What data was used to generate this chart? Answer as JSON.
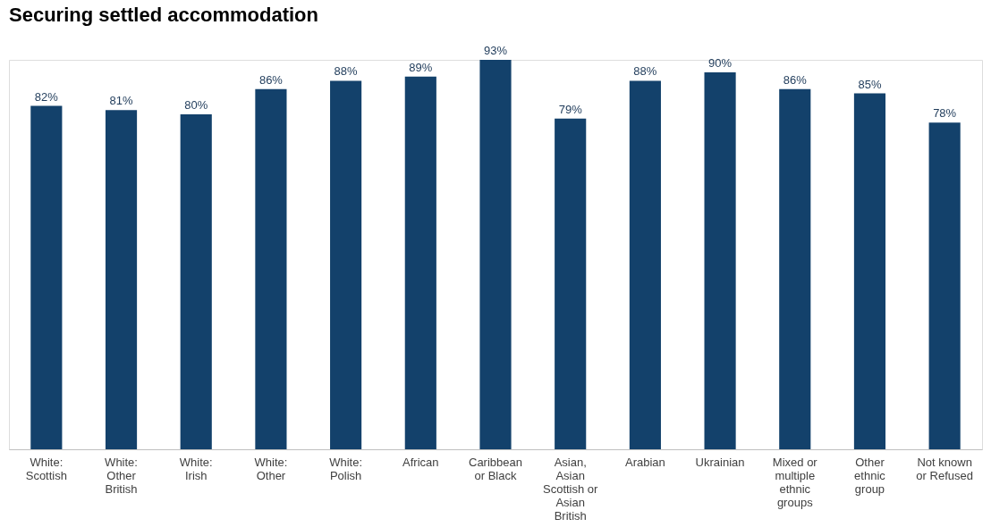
{
  "chart_data": {
    "type": "bar",
    "title": "Securing settled accommodation",
    "categories": [
      "White: Scottish",
      "White: Other British",
      "White: Irish",
      "White: Other",
      "White: Polish",
      "African",
      "Caribbean or Black",
      "Asian, Asian Scottish or Asian British",
      "Arabian",
      "Ukrainian",
      "Mixed or multiple ethnic groups",
      "Other ethnic group",
      "Not known or Refused"
    ],
    "values": [
      82,
      81,
      80,
      86,
      88,
      89,
      93,
      79,
      88,
      90,
      86,
      85,
      78
    ],
    "value_labels": [
      "82%",
      "81%",
      "80%",
      "86%",
      "88%",
      "89%",
      "93%",
      "79%",
      "88%",
      "90%",
      "86%",
      "85%",
      "78%"
    ],
    "color": "#13416b"
  }
}
